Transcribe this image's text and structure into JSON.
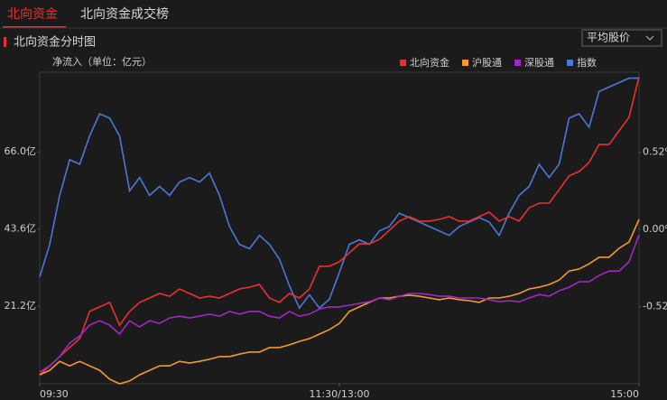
{
  "tabs": [
    "北向资金",
    "北向资金成交榜"
  ],
  "panel_title": "北向资金分时图",
  "dropdown": "平均股价",
  "chart_data": {
    "type": "line",
    "y_label": "净流入（单位：亿元）",
    "x": [
      0,
      4,
      8,
      12,
      16,
      20,
      24,
      28,
      32,
      36,
      40,
      44,
      48,
      52,
      56,
      60,
      64,
      68,
      72,
      76,
      80,
      84,
      88,
      92,
      96,
      100,
      104,
      108,
      112,
      116,
      120,
      124,
      128,
      132,
      136,
      140,
      144,
      148,
      152,
      156,
      160,
      164,
      168,
      172,
      176,
      180,
      184,
      188,
      192,
      196,
      200,
      204,
      208,
      212,
      216,
      220,
      224,
      228,
      232,
      236,
      240
    ],
    "xlim": [
      0,
      240
    ],
    "xticks": [
      {
        "value": 0,
        "label": "09:30"
      },
      {
        "value": 120,
        "label": "11:30/13:00"
      },
      {
        "value": 240,
        "label": "15:00"
      }
    ],
    "ylim": [
      -1.3,
      89.1
    ],
    "yticks": [
      {
        "value": 21.2,
        "label": "21.2亿"
      },
      {
        "value": 43.6,
        "label": "43.6亿"
      },
      {
        "value": 66.0,
        "label": "66.0亿"
      }
    ],
    "y2lim": [
      -1.04,
      1.06
    ],
    "y2ticks": [
      {
        "value": -0.52,
        "label": "-0.52%"
      },
      {
        "value": 0,
        "label": "0.00%"
      },
      {
        "value": 0.52,
        "label": "0.52%"
      }
    ],
    "grid": false,
    "legend": "top-right",
    "series": [
      {
        "name": "指数",
        "color": "#4a78d8",
        "axis": "y2",
        "values": [
          -0.32,
          -0.1,
          0.23,
          0.47,
          0.44,
          0.63,
          0.78,
          0.75,
          0.63,
          0.26,
          0.35,
          0.23,
          0.29,
          0.23,
          0.32,
          0.35,
          0.32,
          0.38,
          0.23,
          0.02,
          -0.1,
          -0.13,
          -0.04,
          -0.1,
          -0.2,
          -0.38,
          -0.53,
          -0.44,
          -0.53,
          -0.47,
          -0.29,
          -0.1,
          -0.07,
          -0.1,
          -0.01,
          0.02,
          0.11,
          0.08,
          0.05,
          0.02,
          -0.01,
          -0.04,
          0.02,
          0.05,
          0.08,
          0.05,
          -0.04,
          0.11,
          0.23,
          0.29,
          0.44,
          0.35,
          0.44,
          0.75,
          0.78,
          0.69,
          0.93,
          0.96,
          0.99,
          1.02,
          1.02
        ]
      },
      {
        "name": "北向资金",
        "color": "#e8312f",
        "values": [
          1.3,
          3.9,
          6.6,
          9.2,
          11.8,
          19.7,
          21.0,
          22.3,
          15.7,
          19.7,
          22.3,
          23.6,
          24.9,
          24.1,
          26.2,
          24.9,
          23.6,
          24.1,
          23.6,
          24.9,
          26.2,
          26.7,
          27.5,
          23.6,
          22.3,
          24.9,
          23.6,
          26.2,
          32.8,
          32.8,
          34.1,
          36.7,
          39.3,
          39.3,
          40.6,
          43.2,
          45.9,
          47.2,
          45.9,
          45.9,
          46.4,
          47.2,
          45.9,
          45.9,
          47.2,
          48.5,
          45.9,
          47.2,
          45.9,
          49.8,
          51.1,
          51.1,
          55.0,
          59.0,
          60.3,
          62.9,
          68.1,
          68.1,
          72.1,
          76.0,
          87.8
        ]
      },
      {
        "name": "沪股通",
        "color": "#f39a2e",
        "values": [
          1.3,
          2.6,
          5.2,
          3.9,
          5.2,
          3.9,
          2.6,
          0,
          -1.3,
          -0.5,
          1.3,
          2.6,
          3.9,
          3.9,
          5.2,
          4.7,
          5.2,
          5.8,
          6.6,
          6.6,
          7.3,
          7.9,
          7.9,
          9.2,
          9.2,
          10.0,
          11.0,
          11.8,
          13.1,
          14.4,
          16.2,
          19.7,
          21.0,
          22.3,
          23.6,
          23.6,
          24.1,
          24.4,
          24.1,
          23.6,
          23.1,
          23.6,
          23.1,
          22.8,
          22.3,
          23.6,
          23.6,
          24.1,
          24.9,
          26.2,
          26.7,
          27.5,
          28.8,
          31.4,
          32.0,
          33.5,
          35.4,
          35.4,
          38.0,
          39.8,
          46.4
        ]
      },
      {
        "name": "深股通",
        "color": "#a227c4",
        "values": [
          2.1,
          3.9,
          6.6,
          10.5,
          12.6,
          15.7,
          17.0,
          15.7,
          13.1,
          17.0,
          15.2,
          17.0,
          16.2,
          17.8,
          18.3,
          17.8,
          18.3,
          18.9,
          18.3,
          19.7,
          18.9,
          19.7,
          19.7,
          18.3,
          17.8,
          19.7,
          18.3,
          18.9,
          20.4,
          21.0,
          21.0,
          21.5,
          22.0,
          22.5,
          23.6,
          23.1,
          24.1,
          24.9,
          24.9,
          24.6,
          24.1,
          24.1,
          23.6,
          23.6,
          23.6,
          23.1,
          22.5,
          22.8,
          22.5,
          23.6,
          24.6,
          24.1,
          25.7,
          26.7,
          28.3,
          28.3,
          30.1,
          31.4,
          31.4,
          34.1,
          41.9
        ]
      }
    ]
  }
}
